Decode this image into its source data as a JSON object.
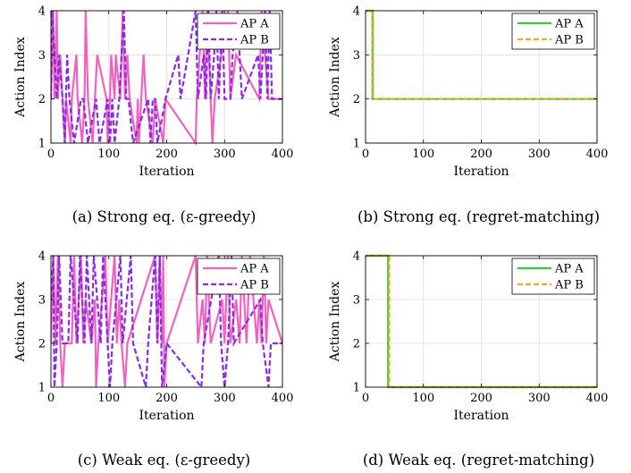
{
  "chart_data": [
    {
      "type": "line",
      "caption": "(a) Strong eq. (ε-greedy)",
      "xlabel": "Iteration",
      "ylabel": "Action Index",
      "xlim": [
        0,
        400
      ],
      "ylim": [
        1,
        4
      ],
      "xticks": [
        0,
        100,
        200,
        300,
        400
      ],
      "yticks": [
        1,
        2,
        3,
        4
      ],
      "grid": true,
      "legend": "top-right",
      "series": [
        {
          "name": "AP A",
          "color": "#f062c0",
          "dash": "solid",
          "x": [
            0,
            4,
            6,
            10,
            12,
            16,
            20,
            24,
            26,
            34,
            36,
            44,
            46,
            54,
            58,
            60,
            64,
            72,
            76,
            80,
            96,
            98,
            102,
            104,
            110,
            112,
            120,
            124,
            128,
            132,
            136,
            148,
            150,
            152,
            156,
            160,
            164,
            176,
            180,
            194,
            198,
            250,
            252,
            262,
            266,
            270,
            276,
            279,
            283,
            306,
            310,
            320,
            360,
            364,
            376,
            400
          ],
          "values": [
            2,
            4,
            2,
            4,
            2,
            3,
            2,
            1,
            2,
            1,
            2,
            3,
            2,
            1,
            2,
            4,
            2,
            1,
            2,
            3,
            2,
            1,
            2,
            3,
            2,
            3,
            2,
            4,
            2,
            3,
            2,
            1,
            2,
            1,
            2,
            3,
            2,
            1,
            2,
            1,
            2,
            1,
            2,
            4,
            2,
            4,
            2,
            1,
            2,
            4,
            2,
            3,
            2,
            4,
            2,
            2
          ]
        },
        {
          "name": "AP B",
          "color": "#8a2be2",
          "dash": "dashed",
          "x": [
            0,
            2,
            6,
            10,
            14,
            20,
            24,
            28,
            32,
            40,
            52,
            56,
            64,
            78,
            84,
            98,
            102,
            106,
            110,
            118,
            126,
            130,
            134,
            142,
            168,
            172,
            176,
            180,
            184,
            198,
            220,
            224,
            250,
            254,
            264,
            268,
            272,
            276,
            282,
            286,
            290,
            296,
            300,
            310,
            314,
            322,
            330,
            358,
            362,
            370,
            374,
            378,
            382,
            400
          ],
          "values": [
            2,
            4,
            3,
            2,
            3,
            2,
            1,
            3,
            2,
            1,
            2,
            2,
            1,
            2,
            1,
            2,
            1,
            2,
            1,
            2,
            4,
            2,
            2,
            1,
            2,
            1,
            2,
            2,
            1,
            2,
            3,
            2,
            4,
            2,
            3,
            2,
            4,
            2,
            3,
            4,
            2,
            4,
            2,
            2,
            3,
            4,
            2,
            3,
            2,
            4,
            2,
            4,
            2,
            2
          ]
        }
      ]
    },
    {
      "type": "line",
      "caption": "(b) Strong eq. (regret-matching)",
      "xlabel": "Iteration",
      "ylabel": "Action Index",
      "xlim": [
        0,
        400
      ],
      "ylim": [
        1,
        4
      ],
      "xticks": [
        0,
        100,
        200,
        300,
        400
      ],
      "yticks": [
        1,
        2,
        3,
        4
      ],
      "grid": true,
      "legend": "top-right",
      "series": [
        {
          "name": "AP A",
          "color": "#33cc33",
          "dash": "solid",
          "x": [
            0,
            12,
            12,
            400
          ],
          "values": [
            4,
            4,
            2,
            2
          ]
        },
        {
          "name": "AP B",
          "color": "#f5a623",
          "dash": "dashed",
          "x": [
            0,
            13,
            13,
            400
          ],
          "values": [
            4,
            4,
            2,
            2
          ]
        }
      ]
    },
    {
      "type": "line",
      "caption": "(c) Weak eq. (ε-greedy)",
      "xlabel": "Iteration",
      "ylabel": "Action Index",
      "xlim": [
        0,
        400
      ],
      "ylim": [
        1,
        4
      ],
      "xticks": [
        0,
        100,
        200,
        300,
        400
      ],
      "yticks": [
        1,
        2,
        3,
        4
      ],
      "grid": true,
      "legend": "top-right",
      "series": [
        {
          "name": "AP A",
          "color": "#f062c0",
          "dash": "solid",
          "x": [
            0,
            4,
            8,
            12,
            16,
            20,
            24,
            36,
            40,
            44,
            52,
            56,
            60,
            70,
            76,
            78,
            82,
            94,
            98,
            110,
            114,
            118,
            122,
            128,
            132,
            180,
            184,
            188,
            192,
            194,
            196,
            200,
            250,
            254,
            262,
            266,
            270,
            276,
            296,
            300,
            306,
            310,
            320,
            326,
            330,
            338,
            344,
            356,
            360,
            364,
            368,
            372,
            376,
            400
          ],
          "values": [
            2,
            4,
            2,
            4,
            2,
            1,
            2,
            2,
            4,
            2,
            4,
            2,
            3,
            2,
            3,
            1,
            2,
            4,
            2,
            4,
            2,
            3,
            2,
            1,
            2,
            4,
            2,
            4,
            2,
            4,
            1,
            2,
            4,
            2,
            3,
            2,
            4,
            2,
            3,
            2,
            4,
            2,
            3,
            2,
            4,
            2,
            4,
            2,
            3,
            2,
            4,
            2,
            3,
            2
          ]
        },
        {
          "name": "AP B",
          "color": "#8a2be2",
          "dash": "dashed",
          "x": [
            0,
            4,
            6,
            10,
            14,
            20,
            30,
            34,
            46,
            50,
            58,
            62,
            70,
            74,
            86,
            90,
            102,
            106,
            120,
            124,
            138,
            142,
            164,
            168,
            180,
            184,
            188,
            192,
            200,
            260,
            264,
            290,
            294,
            300,
            306,
            312,
            316,
            362,
            366,
            376,
            380,
            400
          ],
          "values": [
            3,
            4,
            1,
            2,
            4,
            2,
            2,
            4,
            2,
            4,
            2,
            4,
            2,
            4,
            2,
            4,
            1,
            2,
            4,
            2,
            4,
            2,
            1,
            2,
            4,
            2,
            4,
            1,
            2,
            1,
            2,
            4,
            2,
            1,
            2,
            4,
            2,
            3,
            2,
            1,
            2,
            2
          ]
        }
      ]
    },
    {
      "type": "line",
      "caption": "(d) Weak eq. (regret-matching)",
      "xlabel": "Iteration",
      "ylabel": "Action Index",
      "xlim": [
        0,
        400
      ],
      "ylim": [
        1,
        4
      ],
      "xticks": [
        0,
        100,
        200,
        300,
        400
      ],
      "yticks": [
        1,
        2,
        3,
        4
      ],
      "grid": true,
      "legend": "top-right",
      "series": [
        {
          "name": "AP A",
          "color": "#33cc33",
          "dash": "solid",
          "x": [
            0,
            39,
            39,
            400
          ],
          "values": [
            4,
            4,
            1,
            1
          ]
        },
        {
          "name": "AP B",
          "color": "#f5a623",
          "dash": "dashed",
          "x": [
            0,
            41,
            41,
            400
          ],
          "values": [
            4,
            4,
            1,
            1
          ]
        }
      ]
    }
  ]
}
